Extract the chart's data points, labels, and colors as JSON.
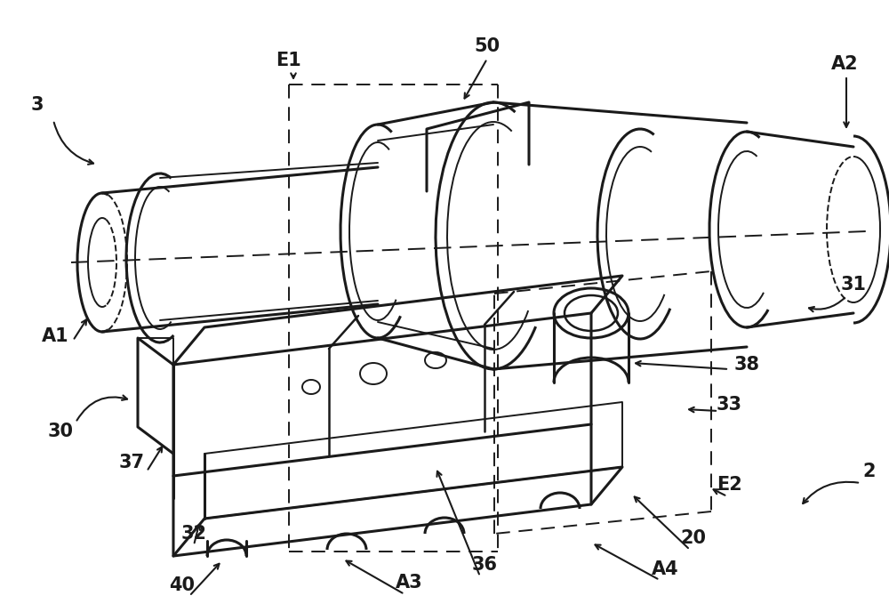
{
  "bg_color": "#ffffff",
  "line_color": "#1a1a1a",
  "figsize": [
    10.0,
    6.88
  ],
  "dpi": 100,
  "xlim": [
    0,
    1000
  ],
  "ylim": [
    0,
    688
  ],
  "fs": 15
}
